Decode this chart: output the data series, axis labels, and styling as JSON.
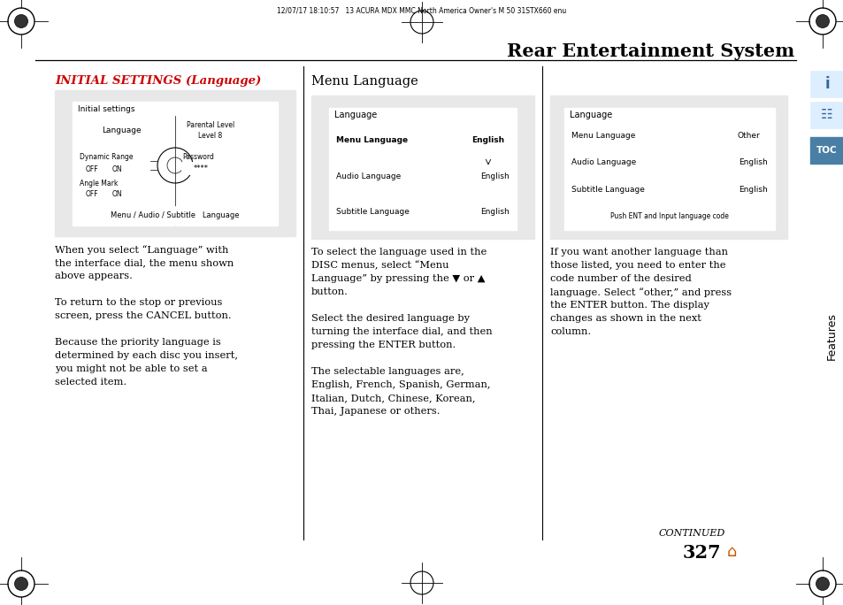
{
  "title": "Rear Entertainment System",
  "page_number": "327",
  "header_text": "12/07/17 18:10:57   13 ACURA MDX MMC North America Owner's M 50 31STX660 enu",
  "continued_text": "CONTINUED",
  "section1_title": "INITIAL SETTINGS (Language)",
  "section2_title": "Menu Language",
  "bg_color": "#ffffff",
  "gray_box": "#e8e8e8",
  "red_color": "#cc0000",
  "toc_bg": "#4a7fa5",
  "sidebar_icon_bg": "#dde8f0"
}
